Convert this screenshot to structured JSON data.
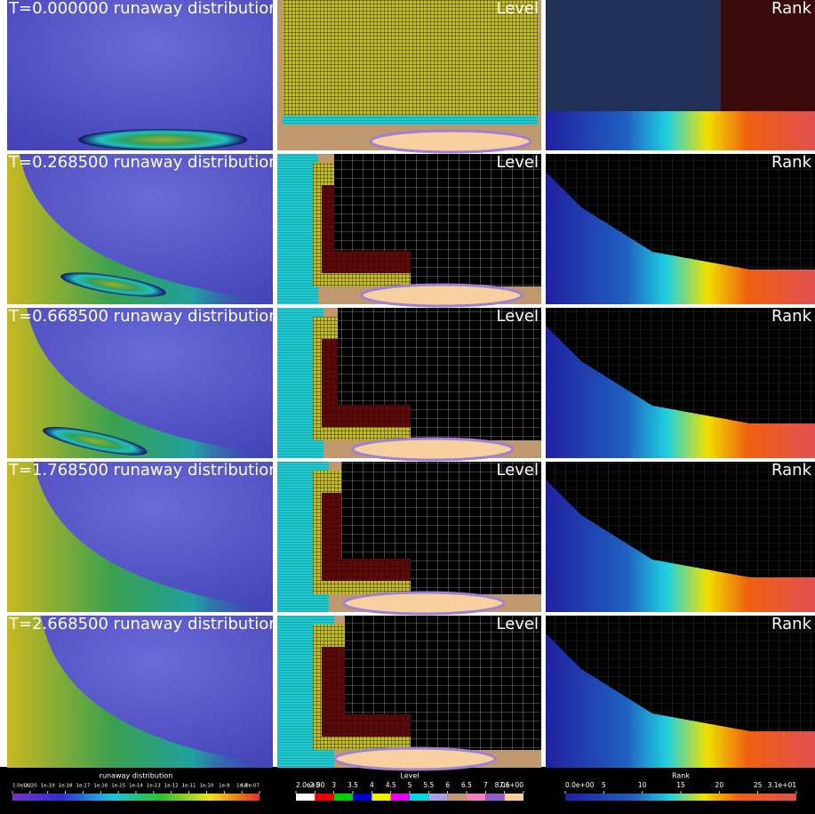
{
  "rows": [
    {
      "time_label": "T=0.000000  runaway distribution",
      "level_label": "Level",
      "rank_label": "Rank"
    },
    {
      "time_label": "T=0.268500  runaway distribution",
      "level_label": "Level",
      "rank_label": "Rank"
    },
    {
      "time_label": "T=0.668500  runaway distribution",
      "level_label": "Level",
      "rank_label": "Rank"
    },
    {
      "time_label": "T=1.768500  runaway distribution",
      "level_label": "Level",
      "rank_label": "Rank"
    },
    {
      "time_label": "T=2.668500  runaway distribution",
      "level_label": "Level",
      "rank_label": "Rank"
    }
  ],
  "colorbars": [
    {
      "title": "runaway distribution",
      "ticks": [
        "1.0e-22",
        "1e-20",
        "1e-19",
        "1e-18",
        "1e-17",
        "1e-16",
        "1e-15",
        "1e-14",
        "1e-13",
        "1e-12",
        "1e-11",
        "1e-10",
        "1e-9",
        "1e-8",
        "1.0e-07"
      ]
    },
    {
      "title": "Level",
      "ticks": [
        "2.0e+00",
        "2.5",
        "3",
        "3.5",
        "4",
        "4.5",
        "5",
        "5.5",
        "6",
        "6.5",
        "7",
        "7.5",
        "8.0e+00"
      ]
    },
    {
      "title": "Rank",
      "ticks": [
        "0.0e+00",
        "5",
        "10",
        "15",
        "20",
        "25",
        "3.1e+01"
      ]
    }
  ]
}
